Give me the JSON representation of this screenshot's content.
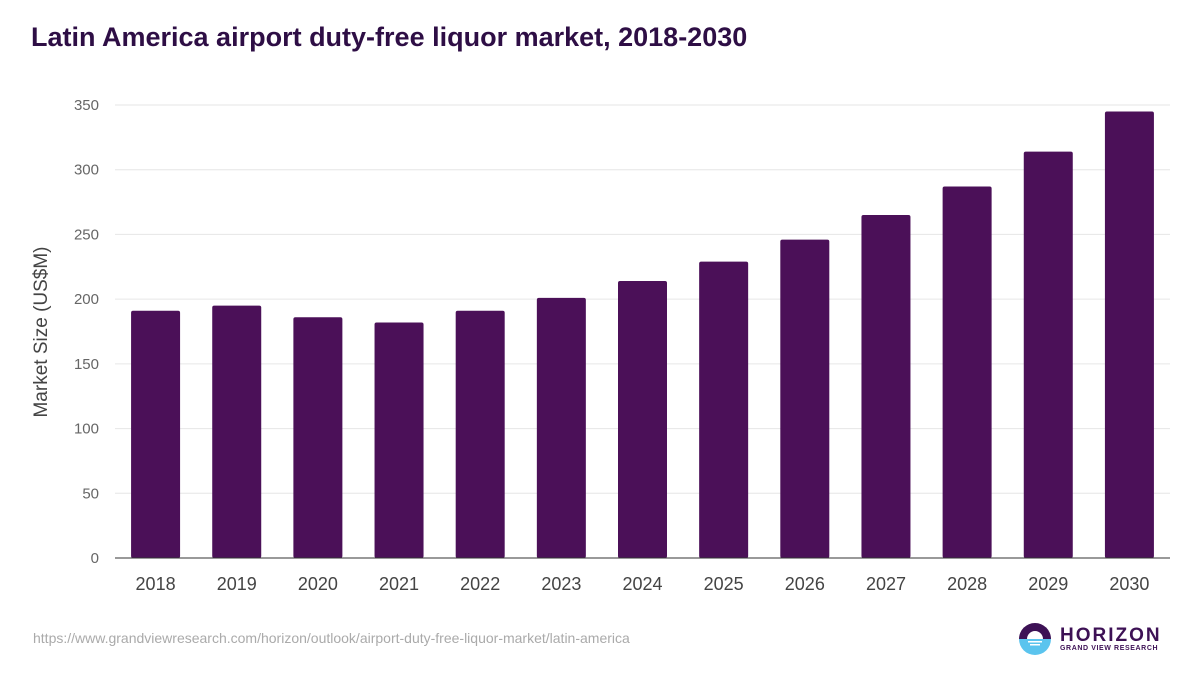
{
  "chart_data": {
    "type": "bar",
    "title": "Latin America airport duty-free liquor market, 2018-2030",
    "xlabel": "",
    "ylabel": "Market Size (US$M)",
    "ylim": [
      0,
      350
    ],
    "yticks": [
      0,
      50,
      100,
      150,
      200,
      250,
      300,
      350
    ],
    "grid": true,
    "categories": [
      "2018",
      "2019",
      "2020",
      "2021",
      "2022",
      "2023",
      "2024",
      "2025",
      "2026",
      "2027",
      "2028",
      "2029",
      "2030"
    ],
    "values": [
      191,
      195,
      186,
      182,
      191,
      201,
      214,
      229,
      246,
      265,
      287,
      314,
      345
    ],
    "bar_color": "#4b1058"
  },
  "footer": {
    "url": "https://www.grandviewresearch.com/horizon/outlook/airport-duty-free-liquor-market/latin-america",
    "logo_main": "HORIZON",
    "logo_sub": "GRAND VIEW RESEARCH"
  }
}
